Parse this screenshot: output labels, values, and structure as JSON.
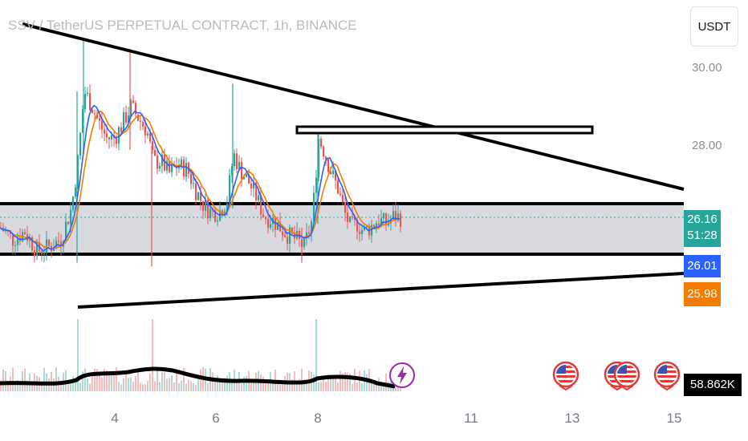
{
  "header": {
    "title": "SSV / TetherUS PERPETUAL CONTRACT, 1h, BINANCE",
    "currency": "USDT"
  },
  "price_scale": {
    "ticks": [
      "30.00",
      "28.00"
    ],
    "last_price": "26.16",
    "countdown": "51:28",
    "ma_fast": "26.01",
    "ma_slow": "25.98",
    "volume": "58.862K"
  },
  "time_axis": {
    "labels": [
      "4",
      "6",
      "8",
      "11",
      "13",
      "15"
    ]
  },
  "colors": {
    "up": "#26a69a",
    "down": "#ef5350",
    "ma_fast": "#2962ff",
    "ma_slow": "#f57c00",
    "zone": "#d9dadf",
    "last_price": "#26a69a"
  },
  "events": {
    "bolt_icon": "lightning-bolt-icon",
    "flag_icon": "us-flag-icon",
    "flag_count": 4
  },
  "chart_data": {
    "type": "candlestick",
    "ylim": [
      24.4,
      31.1
    ],
    "y_ticks": [
      30.0,
      28.0
    ],
    "x_ticks": [
      "4",
      "6",
      "8",
      "11",
      "13",
      "15"
    ],
    "grid": false,
    "candles_ohlc_sample": [
      {
        "x": "3",
        "o": 25.6,
        "h": 25.9,
        "l": 25.3,
        "c": 25.5
      },
      {
        "x": "3.8",
        "o": 25.4,
        "h": 29.8,
        "l": 25.3,
        "c": 29.2
      },
      {
        "x": "4",
        "o": 29.2,
        "h": 30.7,
        "l": 28.5,
        "c": 28.9
      },
      {
        "x": "4.5",
        "o": 28.6,
        "h": 30.5,
        "l": 28.0,
        "c": 28.4
      },
      {
        "x": "4.8",
        "o": 28.2,
        "h": 28.6,
        "l": 24.8,
        "c": 27.2
      },
      {
        "x": "6.3",
        "o": 27.4,
        "h": 29.6,
        "l": 26.4,
        "c": 28.3
      },
      {
        "x": "7.6",
        "o": 25.9,
        "h": 26.3,
        "l": 25.0,
        "c": 25.4
      },
      {
        "x": "8",
        "o": 25.9,
        "h": 28.5,
        "l": 25.8,
        "c": 28.2
      },
      {
        "x": "8.9",
        "o": 26.1,
        "h": 26.4,
        "l": 25.9,
        "c": 26.0
      },
      {
        "x": "9.6",
        "o": 26.0,
        "h": 26.6,
        "l": 25.9,
        "c": 26.16
      }
    ],
    "series": [
      {
        "name": "",
        "values_desc": "fast moving average line"
      },
      {
        "name": "",
        "values_desc": "slow moving average line"
      }
    ],
    "annotations": [
      "descending trendline",
      "rising trendline",
      "horizontal resistance rectangle near 28.3",
      "support/resistance zone 25.85–26.90"
    ]
  }
}
